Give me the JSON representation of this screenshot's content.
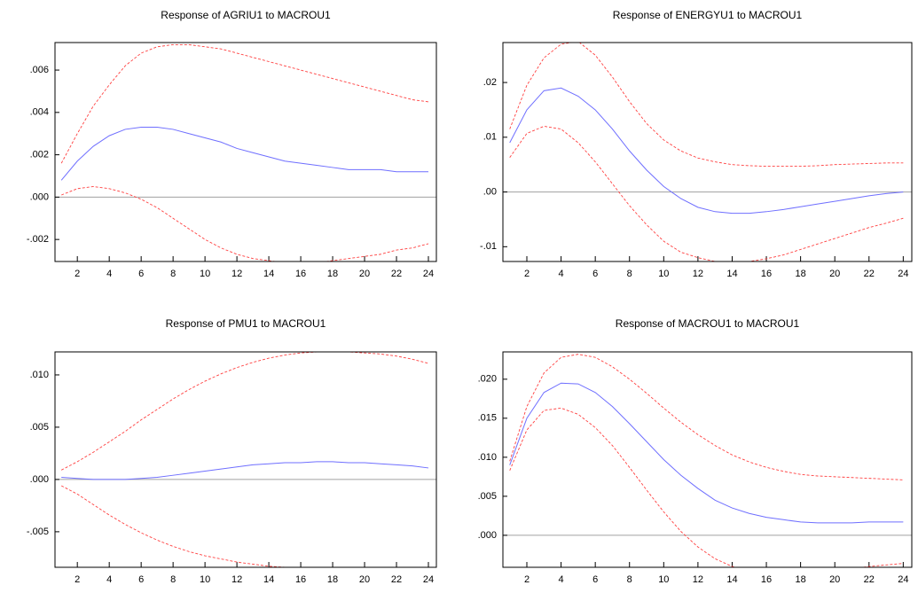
{
  "chart_data": [
    {
      "type": "line",
      "title": "Response of AGRIU1 to MACROU1",
      "x": [
        1,
        2,
        3,
        4,
        5,
        6,
        7,
        8,
        9,
        10,
        11,
        12,
        13,
        14,
        15,
        16,
        17,
        18,
        19,
        20,
        21,
        22,
        23,
        24
      ],
      "xlim": [
        0.6,
        24.5
      ],
      "xticks": [
        2,
        4,
        6,
        8,
        10,
        12,
        14,
        16,
        18,
        20,
        22,
        24
      ],
      "ylim": [
        -0.00304,
        0.0073
      ],
      "yticks": [
        {
          "value": -0.002,
          "label": "-.002"
        },
        {
          "value": 0,
          "label": ".000"
        },
        {
          "value": 0.002,
          "label": ".002"
        },
        {
          "value": 0.004,
          "label": ".004"
        },
        {
          "value": 0.006,
          "label": ".006"
        }
      ],
      "zero_line": true,
      "series": [
        {
          "color": "#6f6fff",
          "linestyle": "solid",
          "values": [
            0.0008,
            0.0017,
            0.0024,
            0.0029,
            0.0032,
            0.0033,
            0.0033,
            0.0032,
            0.003,
            0.0028,
            0.0026,
            0.0023,
            0.0021,
            0.0019,
            0.0017,
            0.0016,
            0.0015,
            0.0014,
            0.0013,
            0.0013,
            0.0013,
            0.0012,
            0.0012,
            0.0012
          ]
        },
        {
          "color": "#ff4040",
          "linestyle": "dashed",
          "values": [
            0.0016,
            0.003,
            0.0043,
            0.0053,
            0.0062,
            0.0068,
            0.0071,
            0.0072,
            0.0072,
            0.0071,
            0.007,
            0.0068,
            0.0066,
            0.0064,
            0.0062,
            0.006,
            0.0058,
            0.0056,
            0.0054,
            0.0052,
            0.005,
            0.0048,
            0.0046,
            0.0045
          ]
        },
        {
          "color": "#ff4040",
          "linestyle": "dashed",
          "values": [
            0.0001,
            0.0004,
            0.0005,
            0.0004,
            0.0002,
            -0.0001,
            -0.0005,
            -0.001,
            -0.0015,
            -0.002,
            -0.0024,
            -0.0027,
            -0.0029,
            -0.003,
            -0.0031,
            -0.0031,
            -0.0031,
            -0.003,
            -0.0029,
            -0.0028,
            -0.0027,
            -0.0025,
            -0.0024,
            -0.0022
          ]
        }
      ]
    },
    {
      "type": "line",
      "title": "Response of ENERGYU1 to MACROU1",
      "x": [
        1,
        2,
        3,
        4,
        5,
        6,
        7,
        8,
        9,
        10,
        11,
        12,
        13,
        14,
        15,
        16,
        17,
        18,
        19,
        20,
        21,
        22,
        23,
        24
      ],
      "xlim": [
        0.6,
        24.5
      ],
      "xticks": [
        2,
        4,
        6,
        8,
        10,
        12,
        14,
        16,
        18,
        20,
        22,
        24
      ],
      "ylim": [
        -0.0127,
        0.0273
      ],
      "yticks": [
        {
          "value": -0.01,
          "label": "-.01"
        },
        {
          "value": 0,
          "label": ".00"
        },
        {
          "value": 0.01,
          "label": ".01"
        },
        {
          "value": 0.02,
          "label": ".02"
        }
      ],
      "zero_line": true,
      "series": [
        {
          "color": "#6f6fff",
          "linestyle": "solid",
          "values": [
            0.009,
            0.015,
            0.0185,
            0.019,
            0.0175,
            0.015,
            0.0115,
            0.0075,
            0.004,
            0.001,
            -0.0012,
            -0.0028,
            -0.0036,
            -0.0039,
            -0.0039,
            -0.0036,
            -0.0032,
            -0.0027,
            -0.0022,
            -0.0017,
            -0.0012,
            -0.0007,
            -0.0003,
            0.0
          ]
        },
        {
          "color": "#ff4040",
          "linestyle": "dashed",
          "values": [
            0.0115,
            0.0195,
            0.0245,
            0.027,
            0.0275,
            0.025,
            0.021,
            0.0165,
            0.0125,
            0.0095,
            0.0075,
            0.0062,
            0.0055,
            0.005,
            0.0048,
            0.0047,
            0.0047,
            0.0047,
            0.0048,
            0.005,
            0.0051,
            0.0052,
            0.0053,
            0.0053
          ]
        },
        {
          "color": "#ff4040",
          "linestyle": "dashed",
          "values": [
            0.0063,
            0.0107,
            0.012,
            0.0115,
            0.009,
            0.0055,
            0.0015,
            -0.0025,
            -0.006,
            -0.009,
            -0.011,
            -0.012,
            -0.0127,
            -0.0128,
            -0.0127,
            -0.0122,
            -0.0115,
            -0.0105,
            -0.0095,
            -0.0085,
            -0.0075,
            -0.0065,
            -0.0057,
            -0.0048
          ]
        }
      ]
    },
    {
      "type": "line",
      "title": "Response of PMU1 to MACROU1",
      "x": [
        1,
        2,
        3,
        4,
        5,
        6,
        7,
        8,
        9,
        10,
        11,
        12,
        13,
        14,
        15,
        16,
        17,
        18,
        19,
        20,
        21,
        22,
        23,
        24
      ],
      "xlim": [
        0.6,
        24.5
      ],
      "xticks": [
        2,
        4,
        6,
        8,
        10,
        12,
        14,
        16,
        18,
        20,
        22,
        24
      ],
      "ylim": [
        -0.0084,
        0.0122
      ],
      "yticks": [
        {
          "value": -0.005,
          "label": "-.005"
        },
        {
          "value": 0,
          "label": ".000"
        },
        {
          "value": 0.005,
          "label": ".005"
        },
        {
          "value": 0.01,
          "label": ".010"
        }
      ],
      "zero_line": true,
      "series": [
        {
          "color": "#6f6fff",
          "linestyle": "solid",
          "values": [
            0.0002,
            0.0001,
            0.0,
            0.0,
            0.0,
            0.0001,
            0.0002,
            0.0004,
            0.0006,
            0.0008,
            0.001,
            0.0012,
            0.0014,
            0.0015,
            0.0016,
            0.0016,
            0.0017,
            0.0017,
            0.0016,
            0.0016,
            0.0015,
            0.0014,
            0.0013,
            0.0011
          ]
        },
        {
          "color": "#ff4040",
          "linestyle": "dashed",
          "values": [
            0.0009,
            0.0017,
            0.0026,
            0.0036,
            0.0046,
            0.0057,
            0.0067,
            0.0077,
            0.0086,
            0.0094,
            0.0101,
            0.0107,
            0.0112,
            0.0116,
            0.0119,
            0.0121,
            0.0122,
            0.0122,
            0.0122,
            0.0121,
            0.012,
            0.0118,
            0.0115,
            0.0111
          ]
        },
        {
          "color": "#ff4040",
          "linestyle": "dashed",
          "values": [
            -0.0006,
            -0.0014,
            -0.0024,
            -0.0034,
            -0.0043,
            -0.0051,
            -0.0058,
            -0.0064,
            -0.0069,
            -0.0073,
            -0.0076,
            -0.0079,
            -0.0081,
            -0.0083,
            -0.0084,
            -0.0085,
            -0.0086,
            -0.0087,
            -0.0087,
            -0.0088,
            -0.0088,
            -0.0089,
            -0.0089,
            -0.009
          ]
        }
      ]
    },
    {
      "type": "line",
      "title": "Response of MACROU1 to MACROU1",
      "x": [
        1,
        2,
        3,
        4,
        5,
        6,
        7,
        8,
        9,
        10,
        11,
        12,
        13,
        14,
        15,
        16,
        17,
        18,
        19,
        20,
        21,
        22,
        23,
        24
      ],
      "xlim": [
        0.6,
        24.5
      ],
      "xticks": [
        2,
        4,
        6,
        8,
        10,
        12,
        14,
        16,
        18,
        20,
        22,
        24
      ],
      "ylim": [
        -0.0041,
        0.0235
      ],
      "yticks": [
        {
          "value": 0,
          "label": ".000"
        },
        {
          "value": 0.005,
          "label": ".005"
        },
        {
          "value": 0.01,
          "label": ".010"
        },
        {
          "value": 0.015,
          "label": ".015"
        },
        {
          "value": 0.02,
          "label": ".020"
        }
      ],
      "zero_line": true,
      "series": [
        {
          "color": "#6f6fff",
          "linestyle": "solid",
          "values": [
            0.009,
            0.015,
            0.0183,
            0.0195,
            0.0194,
            0.0183,
            0.0165,
            0.0143,
            0.012,
            0.0097,
            0.0077,
            0.006,
            0.0045,
            0.0035,
            0.0028,
            0.0023,
            0.002,
            0.0017,
            0.0016,
            0.0016,
            0.0016,
            0.0017,
            0.0017,
            0.0017
          ]
        },
        {
          "color": "#ff4040",
          "linestyle": "dashed",
          "values": [
            0.0095,
            0.0165,
            0.0208,
            0.0228,
            0.0232,
            0.0228,
            0.0216,
            0.02,
            0.0182,
            0.0163,
            0.0145,
            0.0129,
            0.0115,
            0.0103,
            0.0094,
            0.0087,
            0.0082,
            0.0078,
            0.0076,
            0.0075,
            0.0074,
            0.0073,
            0.0072,
            0.0071
          ]
        },
        {
          "color": "#ff4040",
          "linestyle": "dashed",
          "values": [
            0.0083,
            0.0135,
            0.016,
            0.0163,
            0.0155,
            0.0138,
            0.0115,
            0.0087,
            0.0058,
            0.003,
            0.0005,
            -0.0015,
            -0.003,
            -0.004,
            -0.0045,
            -0.0048,
            -0.0049,
            -0.0049,
            -0.0047,
            -0.0045,
            -0.0043,
            -0.004,
            -0.0038,
            -0.0036
          ]
        }
      ]
    }
  ]
}
